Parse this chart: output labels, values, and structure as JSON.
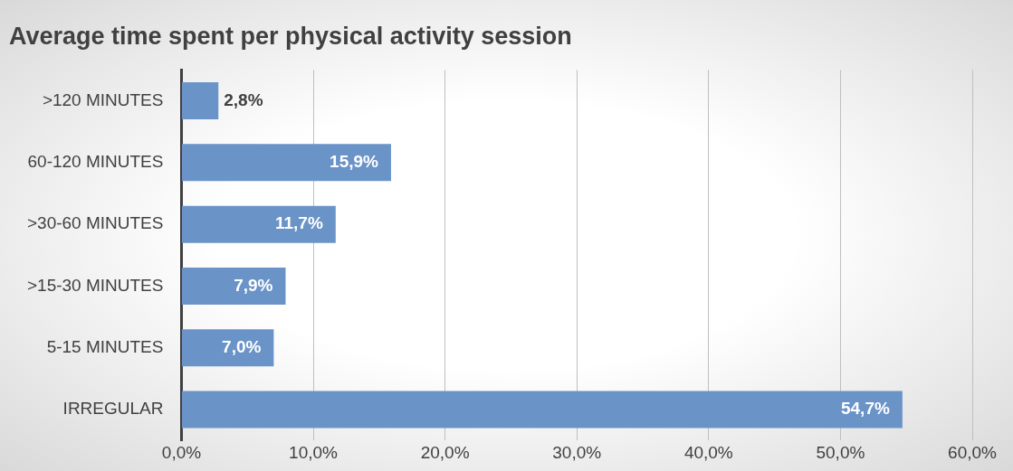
{
  "chart_data": {
    "type": "bar",
    "orientation": "horizontal",
    "title": "Average time spent per physical activity session",
    "categories": [
      ">120 MINUTES",
      "60-120 MINUTES",
      ">30-60 MINUTES",
      ">15-30 MINUTES",
      "5-15 MINUTES",
      "IRREGULAR"
    ],
    "values": [
      2.8,
      15.9,
      11.7,
      7.9,
      7.0,
      54.7
    ],
    "value_labels": [
      "2,8%",
      "15,9%",
      "11,7%",
      "7,9%",
      "7,0%",
      "54,7%"
    ],
    "color": "#6a93c8",
    "xlim": [
      0,
      60
    ],
    "xticks": [
      {
        "value": 0,
        "label": "0,0%"
      },
      {
        "value": 10,
        "label": "10,0%"
      },
      {
        "value": 20,
        "label": "20,0%"
      },
      {
        "value": 30,
        "label": "30,0%"
      },
      {
        "value": 40,
        "label": "40,0%"
      },
      {
        "value": 50,
        "label": "50,0%"
      },
      {
        "value": 60,
        "label": "60,0%"
      }
    ],
    "grid": "x",
    "legend": false
  }
}
